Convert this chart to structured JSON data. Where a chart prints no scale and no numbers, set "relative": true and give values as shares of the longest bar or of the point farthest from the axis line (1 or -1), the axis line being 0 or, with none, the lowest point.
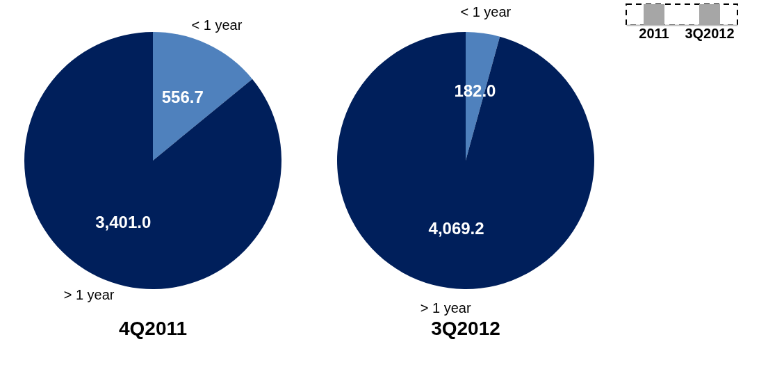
{
  "chart_data": [
    {
      "type": "pie",
      "title": "4Q2011",
      "categories": [
        "< 1 year",
        "> 1 year"
      ],
      "values": [
        556.7,
        3401.0
      ],
      "value_labels": [
        "556.7",
        "3,401.0"
      ],
      "colors": [
        "#4f81bd",
        "#001f5b"
      ]
    },
    {
      "type": "pie",
      "title": "3Q2012",
      "categories": [
        "< 1 year",
        "> 1 year"
      ],
      "values": [
        182.0,
        4069.2
      ],
      "value_labels": [
        "182.0",
        "4,069.2"
      ],
      "colors": [
        "#4f81bd",
        "#001f5b"
      ]
    },
    {
      "type": "bar",
      "categories": [
        "2011",
        "3Q2012"
      ],
      "values": [
        1,
        1
      ],
      "relative": true,
      "color": "#a6a6a6"
    }
  ]
}
